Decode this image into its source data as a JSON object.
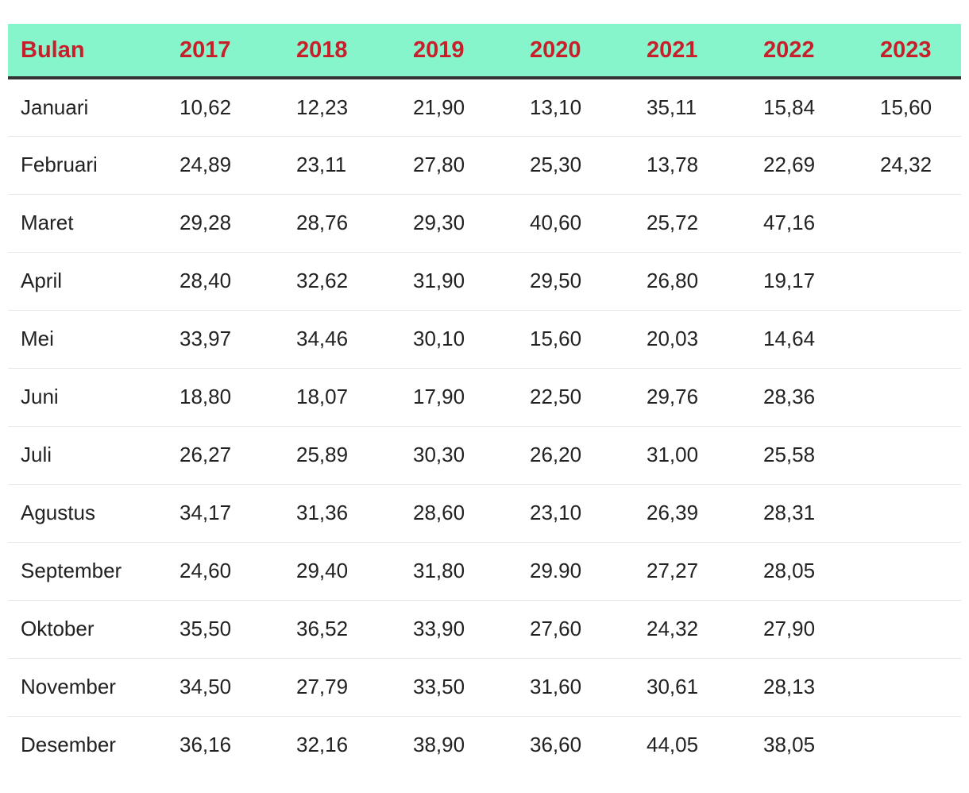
{
  "table": {
    "headers": [
      "Bulan",
      "2017",
      "2018",
      "2019",
      "2020",
      "2021",
      "2022",
      "2023"
    ],
    "rows": [
      [
        "Januari",
        "10,62",
        "12,23",
        "21,90",
        "13,10",
        "35,11",
        "15,84",
        "15,60"
      ],
      [
        "Februari",
        "24,89",
        "23,11",
        "27,80",
        "25,30",
        "13,78",
        "22,69",
        "24,32"
      ],
      [
        "Maret",
        "29,28",
        "28,76",
        "29,30",
        "40,60",
        "25,72",
        "47,16",
        ""
      ],
      [
        "April",
        "28,40",
        "32,62",
        "31,90",
        "29,50",
        "26,80",
        "19,17",
        ""
      ],
      [
        "Mei",
        "33,97",
        "34,46",
        "30,10",
        "15,60",
        "20,03",
        "14,64",
        ""
      ],
      [
        "Juni",
        "18,80",
        "18,07",
        "17,90",
        "22,50",
        "29,76",
        "28,36",
        ""
      ],
      [
        "Juli",
        "26,27",
        "25,89",
        "30,30",
        "26,20",
        "31,00",
        "25,58",
        ""
      ],
      [
        "Agustus",
        "34,17",
        "31,36",
        "28,60",
        "23,10",
        "26,39",
        "28,31",
        ""
      ],
      [
        "September",
        "24,60",
        "29,40",
        "31,80",
        "29.90",
        "27,27",
        "28,05",
        ""
      ],
      [
        "Oktober",
        "35,50",
        "36,52",
        "33,90",
        "27,60",
        "24,32",
        "27,90",
        ""
      ],
      [
        "November",
        "34,50",
        "27,79",
        "33,50",
        "31,60",
        "30,61",
        "28,13",
        ""
      ],
      [
        "Desember",
        "36,16",
        "32,16",
        "38,90",
        "36,60",
        "44,05",
        "38,05",
        ""
      ]
    ]
  },
  "colors": {
    "header_bg": "#86f5cc",
    "header_text": "#c8202b",
    "header_border": "#333333",
    "body_text": "#222222",
    "row_divider": "#e6e6e6"
  }
}
